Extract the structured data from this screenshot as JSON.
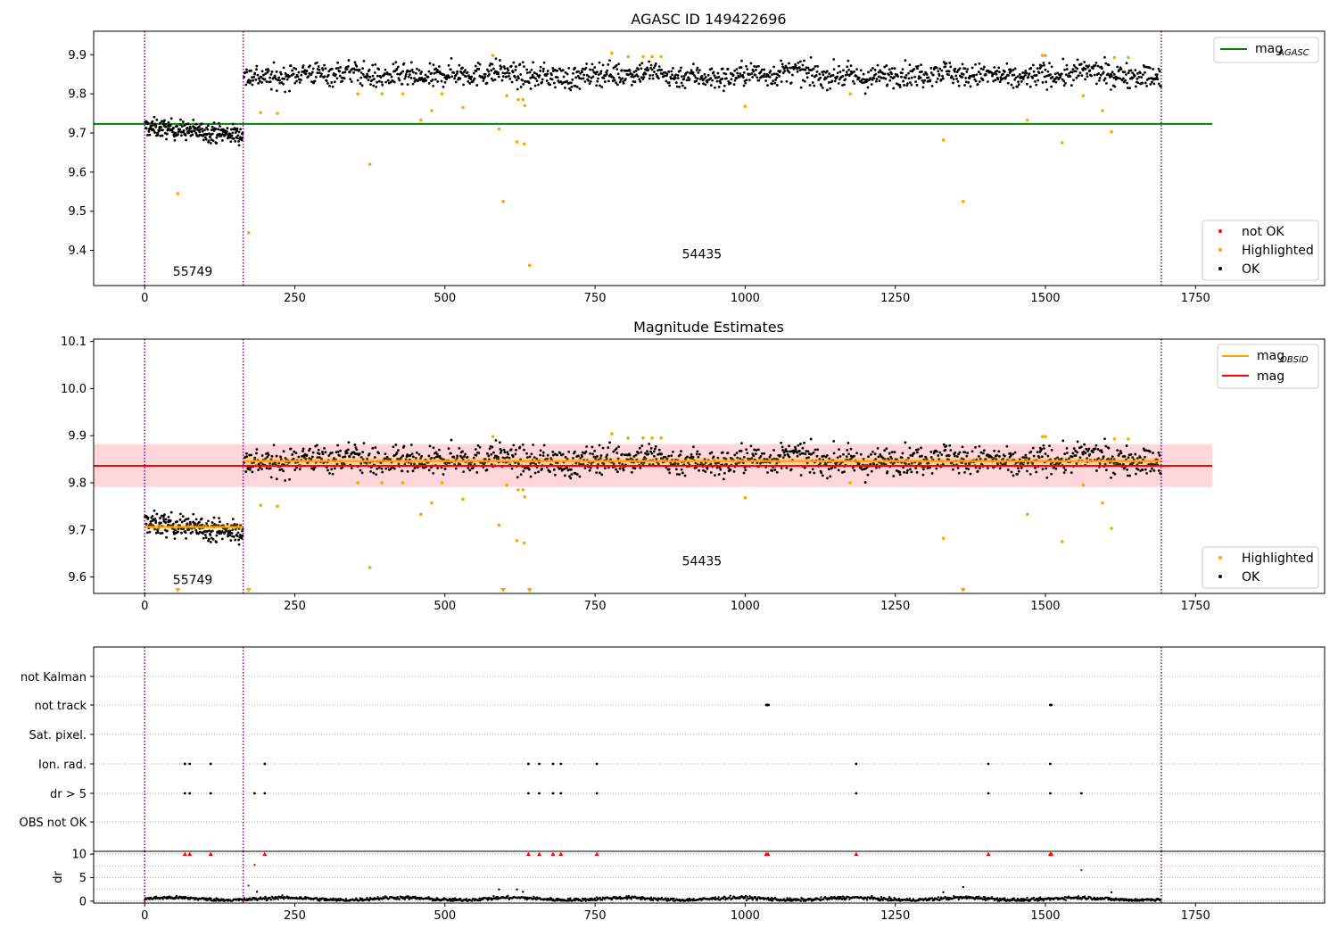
{
  "figure": {
    "top_title": "AGASC ID 149422696",
    "middle_title": "Magnitude Estimates"
  },
  "colors": {
    "ok": "#000000",
    "highlighted": "#ffa500",
    "not_ok": "#ff0000",
    "mag_agasc": "#008000",
    "mag_obsid": "#ffa500",
    "mag": "#ff0000",
    "mag_band": "#ffd6d9",
    "obs_boundary": "#800080",
    "grid": "#b0b0b0"
  },
  "chart_data": [
    {
      "id": "agasc",
      "type": "scatter",
      "title": "AGASC ID 149422696",
      "xlim": [
        -85,
        1965
      ],
      "ylim": [
        9.31,
        9.96
      ],
      "xticks": [
        0,
        250,
        500,
        750,
        1000,
        1250,
        1500,
        1750
      ],
      "yticks": [
        9.4,
        9.5,
        9.6,
        9.7,
        9.8,
        9.9
      ],
      "mag_agasc": {
        "value": 9.723,
        "x_range": [
          -85,
          1778
        ]
      },
      "obs_boundaries": [
        0,
        164,
        1693
      ],
      "obs_labels": [
        {
          "text": "55749",
          "x": 80,
          "y": 9.335
        },
        {
          "text": "54435",
          "x": 928,
          "y": 9.38
        }
      ],
      "ok_segments": [
        {
          "x0": 0,
          "x1": 164,
          "center_start": 9.715,
          "center_end": 9.695,
          "spread": 0.012,
          "n": 240
        },
        {
          "x0": 165,
          "x1": 1693,
          "center": 9.848,
          "spread": 0.015,
          "n": 1500
        }
      ],
      "highlighted": [
        [
          55,
          9.545
        ],
        [
          173,
          9.445
        ],
        [
          193,
          9.752
        ],
        [
          221,
          9.75
        ],
        [
          355,
          9.8
        ],
        [
          375,
          9.62
        ],
        [
          395,
          9.8
        ],
        [
          430,
          9.8
        ],
        [
          460,
          9.733
        ],
        [
          478,
          9.757
        ],
        [
          495,
          9.8
        ],
        [
          530,
          9.765
        ],
        [
          580,
          9.898
        ],
        [
          590,
          9.71
        ],
        [
          597,
          9.525
        ],
        [
          603,
          9.795
        ],
        [
          620,
          9.677
        ],
        [
          622,
          9.785
        ],
        [
          630,
          9.785
        ],
        [
          632,
          9.672
        ],
        [
          633,
          9.77
        ],
        [
          641,
          9.362
        ],
        [
          778,
          9.904
        ],
        [
          805,
          9.895
        ],
        [
          830,
          9.895
        ],
        [
          845,
          9.895
        ],
        [
          860,
          9.895
        ],
        [
          1000,
          9.768
        ],
        [
          1175,
          9.8
        ],
        [
          1330,
          9.682
        ],
        [
          1363,
          9.525
        ],
        [
          1470,
          9.733
        ],
        [
          1495,
          9.898
        ],
        [
          1500,
          9.898
        ],
        [
          1528,
          9.675
        ],
        [
          1563,
          9.795
        ],
        [
          1595,
          9.757
        ],
        [
          1610,
          9.703
        ],
        [
          1615,
          9.893
        ],
        [
          1638,
          9.893
        ]
      ],
      "legend": {
        "lines": [
          {
            "label": "mag",
            "sub": "AGASC"
          }
        ],
        "markers": [
          "not OK",
          "Highlighted",
          "OK"
        ]
      }
    },
    {
      "id": "estimates",
      "type": "scatter",
      "title": "Magnitude Estimates",
      "xlim": [
        -85,
        1965
      ],
      "ylim": [
        9.565,
        10.105
      ],
      "xticks": [
        0,
        250,
        500,
        750,
        1000,
        1250,
        1500,
        1750
      ],
      "yticks": [
        9.6,
        9.7,
        9.8,
        9.9,
        10.0,
        10.1
      ],
      "mag": {
        "value": 9.836,
        "band": [
          9.791,
          9.882
        ],
        "x_range": [
          -85,
          1778
        ]
      },
      "mag_obsid": [
        {
          "x0": 0,
          "x1": 164,
          "value": 9.706
        },
        {
          "x0": 165,
          "x1": 1693,
          "value": 9.846
        }
      ],
      "obs_boundaries": [
        0,
        164,
        1693
      ],
      "obs_labels": [
        {
          "text": "55749",
          "x": 80,
          "y": 9.585
        },
        {
          "text": "54435",
          "x": 928,
          "y": 9.625
        }
      ],
      "highlighted": [
        [
          193,
          9.752
        ],
        [
          221,
          9.75
        ],
        [
          355,
          9.8
        ],
        [
          375,
          9.62
        ],
        [
          395,
          9.8
        ],
        [
          430,
          9.8
        ],
        [
          460,
          9.733
        ],
        [
          478,
          9.757
        ],
        [
          495,
          9.8
        ],
        [
          530,
          9.765
        ],
        [
          580,
          9.898
        ],
        [
          590,
          9.71
        ],
        [
          603,
          9.795
        ],
        [
          620,
          9.677
        ],
        [
          622,
          9.785
        ],
        [
          630,
          9.785
        ],
        [
          632,
          9.672
        ],
        [
          633,
          9.77
        ],
        [
          778,
          9.904
        ],
        [
          805,
          9.895
        ],
        [
          830,
          9.895
        ],
        [
          845,
          9.895
        ],
        [
          860,
          9.895
        ],
        [
          1000,
          9.768
        ],
        [
          1175,
          9.8
        ],
        [
          1330,
          9.682
        ],
        [
          1470,
          9.733
        ],
        [
          1495,
          9.898
        ],
        [
          1500,
          9.898
        ],
        [
          1528,
          9.675
        ],
        [
          1563,
          9.795
        ],
        [
          1595,
          9.757
        ],
        [
          1610,
          9.703
        ],
        [
          1615,
          9.893
        ],
        [
          1638,
          9.893
        ]
      ],
      "clipped_low": [
        55,
        173,
        597,
        641,
        1363
      ],
      "legend": {
        "lines": [
          {
            "label": "mag",
            "sub": "OBSID"
          },
          {
            "label": "mag",
            "sub": ""
          }
        ],
        "markers": [
          "Highlighted",
          "OK"
        ]
      }
    },
    {
      "id": "flags",
      "type": "scatter",
      "xlim": [
        -85,
        1965
      ],
      "xticks": [
        0,
        250,
        500,
        750,
        1000,
        1250,
        1500,
        1750
      ],
      "categories": [
        "OBS not OK",
        "dr > 5",
        "Ion. rad.",
        "Sat. pixel.",
        "not track",
        "not Kalman"
      ],
      "flags": {
        "not track": [
          1035,
          1036,
          1037,
          1038,
          1039,
          1508,
          1509,
          1510
        ],
        "Ion. rad.": [
          67,
          75,
          110,
          200,
          639,
          657,
          680,
          693,
          753,
          1185,
          1405,
          1508
        ],
        "dr > 5": [
          67,
          75,
          110,
          183,
          200,
          639,
          657,
          680,
          693,
          753,
          1185,
          1405,
          1508,
          1560
        ]
      }
    },
    {
      "id": "dr",
      "type": "scatter",
      "ylabel": "dr",
      "ylim": [
        -0.4,
        10.6
      ],
      "yticks": [
        0,
        5,
        10
      ],
      "xlim": [
        -85,
        1965
      ],
      "xticks": [
        0,
        250,
        500,
        750,
        1000,
        1250,
        1500,
        1750
      ],
      "capped_at_10": [
        67,
        75,
        110,
        200,
        639,
        657,
        680,
        693,
        753,
        1035,
        1038,
        1185,
        1405,
        1508,
        1510
      ],
      "outliers": [
        [
          173,
          3.3
        ],
        [
          183,
          7.7
        ],
        [
          187,
          2.0
        ],
        [
          590,
          2.5
        ],
        [
          620,
          2.5
        ],
        [
          630,
          2.0
        ],
        [
          1330,
          1.9
        ],
        [
          1363,
          3.0
        ],
        [
          1560,
          6.6
        ],
        [
          1610,
          1.9
        ]
      ],
      "baseline": {
        "x0": 0,
        "x1": 1693,
        "center": 0.5,
        "spread": 0.35,
        "n": 1500
      }
    }
  ]
}
